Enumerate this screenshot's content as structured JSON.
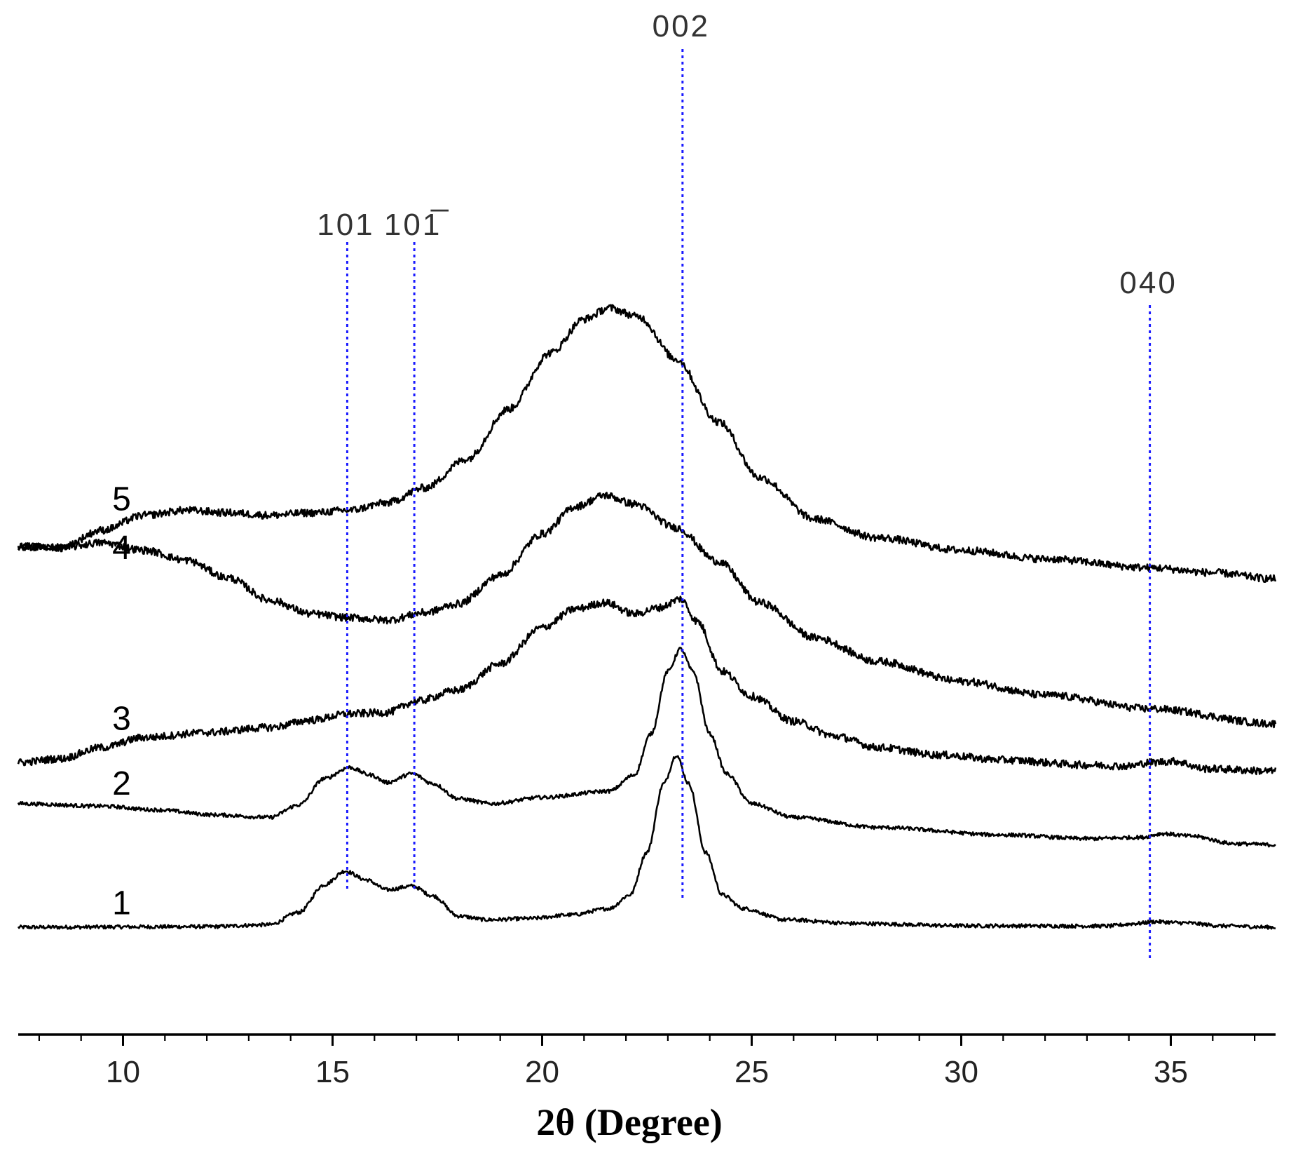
{
  "chart_data": {
    "type": "line",
    "xlabel": "2θ (Degree)",
    "xlim": [
      7.5,
      37.5
    ],
    "xticks": [
      10,
      15,
      20,
      25,
      30,
      35
    ],
    "xtick_labels": [
      "10",
      "15",
      "20",
      "25",
      "30",
      "35"
    ],
    "minor_tick_step": 1,
    "grid": false,
    "y_axis_shown": false,
    "reference_lines": [
      {
        "label": "101",
        "x": 15.35,
        "style": "dotted",
        "color": "#1a1aff"
      },
      {
        "label": "101̅",
        "x": 16.95,
        "style": "dotted",
        "color": "#1a1aff"
      },
      {
        "label": "002",
        "x": 23.35,
        "style": "dotted",
        "color": "#1a1aff"
      },
      {
        "label": "040",
        "x": 34.5,
        "style": "dotted",
        "color": "#1a1aff"
      }
    ],
    "series": [
      {
        "name": "1",
        "noise": 0.15,
        "points": [
          [
            7.5,
            0.0
          ],
          [
            12,
            0.05
          ],
          [
            13.5,
            0.2
          ],
          [
            14.2,
            1.2
          ],
          [
            14.8,
            3.4
          ],
          [
            15.3,
            4.5
          ],
          [
            15.8,
            3.8
          ],
          [
            16.3,
            3.0
          ],
          [
            16.9,
            3.3
          ],
          [
            17.4,
            2.5
          ],
          [
            18.0,
            0.9
          ],
          [
            18.7,
            0.6
          ],
          [
            19.7,
            0.7
          ],
          [
            20.7,
            1.0
          ],
          [
            21.6,
            1.5
          ],
          [
            22.1,
            2.6
          ],
          [
            22.5,
            6.0
          ],
          [
            22.9,
            11.5
          ],
          [
            23.2,
            13.8
          ],
          [
            23.5,
            11.5
          ],
          [
            23.9,
            6.0
          ],
          [
            24.3,
            2.6
          ],
          [
            24.8,
            1.5
          ],
          [
            25.8,
            0.6
          ],
          [
            27.5,
            0.3
          ],
          [
            30,
            0.12
          ],
          [
            33.5,
            0.1
          ],
          [
            34.2,
            0.3
          ],
          [
            34.6,
            0.45
          ],
          [
            35.3,
            0.35
          ],
          [
            36.3,
            0.1
          ],
          [
            37.5,
            0.0
          ]
        ]
      },
      {
        "name": "2",
        "noise": 0.15,
        "points": [
          [
            7.5,
            9.9
          ],
          [
            9.5,
            9.7
          ],
          [
            10.8,
            9.4
          ],
          [
            12.2,
            9.0
          ],
          [
            13.5,
            8.8
          ],
          [
            14.2,
            9.8
          ],
          [
            14.8,
            11.9
          ],
          [
            15.4,
            12.8
          ],
          [
            15.9,
            12.2
          ],
          [
            16.3,
            11.6
          ],
          [
            16.9,
            12.3
          ],
          [
            17.4,
            11.5
          ],
          [
            18.0,
            10.3
          ],
          [
            18.8,
            9.9
          ],
          [
            20,
            10.4
          ],
          [
            21.6,
            10.9
          ],
          [
            22.2,
            12.2
          ],
          [
            22.6,
            15.5
          ],
          [
            23.0,
            20.5
          ],
          [
            23.3,
            22.3
          ],
          [
            23.6,
            20.5
          ],
          [
            24.0,
            15.5
          ],
          [
            24.4,
            12.3
          ],
          [
            25,
            9.9
          ],
          [
            26,
            8.8
          ],
          [
            28,
            8.0
          ],
          [
            31,
            7.4
          ],
          [
            33,
            7.1
          ],
          [
            34.3,
            7.2
          ],
          [
            34.8,
            7.5
          ],
          [
            35.5,
            7.3
          ],
          [
            36.5,
            6.7
          ],
          [
            37.5,
            6.6
          ]
        ]
      },
      {
        "name": "3",
        "noise": 0.3,
        "points": [
          [
            7.5,
            13.2
          ],
          [
            8.5,
            13.5
          ],
          [
            9.5,
            14.4
          ],
          [
            10.5,
            15.2
          ],
          [
            12,
            15.6
          ],
          [
            13.5,
            16.0
          ],
          [
            14.5,
            16.6
          ],
          [
            15.4,
            17.1
          ],
          [
            16.3,
            17.2
          ],
          [
            17.0,
            18.1
          ],
          [
            18,
            19.0
          ],
          [
            19,
            21.1
          ],
          [
            20,
            24.0
          ],
          [
            20.8,
            25.5
          ],
          [
            21.5,
            26.0
          ],
          [
            22.2,
            25.1
          ],
          [
            22.8,
            25.6
          ],
          [
            23.3,
            26.3
          ],
          [
            23.7,
            24.5
          ],
          [
            24.3,
            20.5
          ],
          [
            25,
            18.5
          ],
          [
            26,
            16.5
          ],
          [
            27,
            15.3
          ],
          [
            28,
            14.4
          ],
          [
            29.5,
            13.8
          ],
          [
            31,
            13.4
          ],
          [
            33,
            13.0
          ],
          [
            34.0,
            12.9
          ],
          [
            34.5,
            13.2
          ],
          [
            35.1,
            13.3
          ],
          [
            35.8,
            12.7
          ],
          [
            37.5,
            12.5
          ]
        ]
      },
      {
        "name": "4",
        "noise": 0.3,
        "points": [
          [
            7.5,
            30.5
          ],
          [
            8.5,
            30.4
          ],
          [
            9.5,
            30.8
          ],
          [
            10.5,
            30.2
          ],
          [
            11.5,
            29.4
          ],
          [
            12.5,
            28.0
          ],
          [
            13.5,
            26.2
          ],
          [
            14.5,
            25.1
          ],
          [
            15.4,
            24.8
          ],
          [
            16.3,
            24.6
          ],
          [
            17.2,
            25.2
          ],
          [
            18,
            25.9
          ],
          [
            19,
            28.2
          ],
          [
            20,
            31.5
          ],
          [
            20.8,
            33.7
          ],
          [
            21.5,
            34.6
          ],
          [
            22.2,
            33.9
          ],
          [
            23.2,
            32.0
          ],
          [
            24.2,
            29.3
          ],
          [
            25.2,
            26.0
          ],
          [
            26.5,
            23.2
          ],
          [
            28,
            21.3
          ],
          [
            30,
            19.7
          ],
          [
            32,
            18.6
          ],
          [
            34.5,
            17.5
          ],
          [
            37.5,
            16.3
          ]
        ]
      },
      {
        "name": "5",
        "noise": 0.3,
        "points": [
          [
            7.5,
            30.5
          ],
          [
            8.5,
            30.4
          ],
          [
            9.5,
            31.8
          ],
          [
            10.5,
            33.0
          ],
          [
            11.5,
            33.4
          ],
          [
            12.5,
            33.2
          ],
          [
            13.5,
            33.0
          ],
          [
            14.5,
            33.2
          ],
          [
            15.4,
            33.4
          ],
          [
            16.3,
            34.0
          ],
          [
            17.2,
            35.2
          ],
          [
            18.2,
            37.5
          ],
          [
            19.2,
            41.5
          ],
          [
            20.2,
            46.0
          ],
          [
            21.0,
            48.7
          ],
          [
            21.6,
            49.6
          ],
          [
            22.3,
            48.9
          ],
          [
            23.2,
            45.5
          ],
          [
            24.2,
            40.5
          ],
          [
            25.2,
            36.0
          ],
          [
            26.5,
            32.7
          ],
          [
            28,
            31.2
          ],
          [
            30,
            30.2
          ],
          [
            32,
            29.5
          ],
          [
            34.5,
            28.8
          ],
          [
            36,
            28.4
          ],
          [
            37.5,
            27.9
          ]
        ]
      }
    ]
  }
}
